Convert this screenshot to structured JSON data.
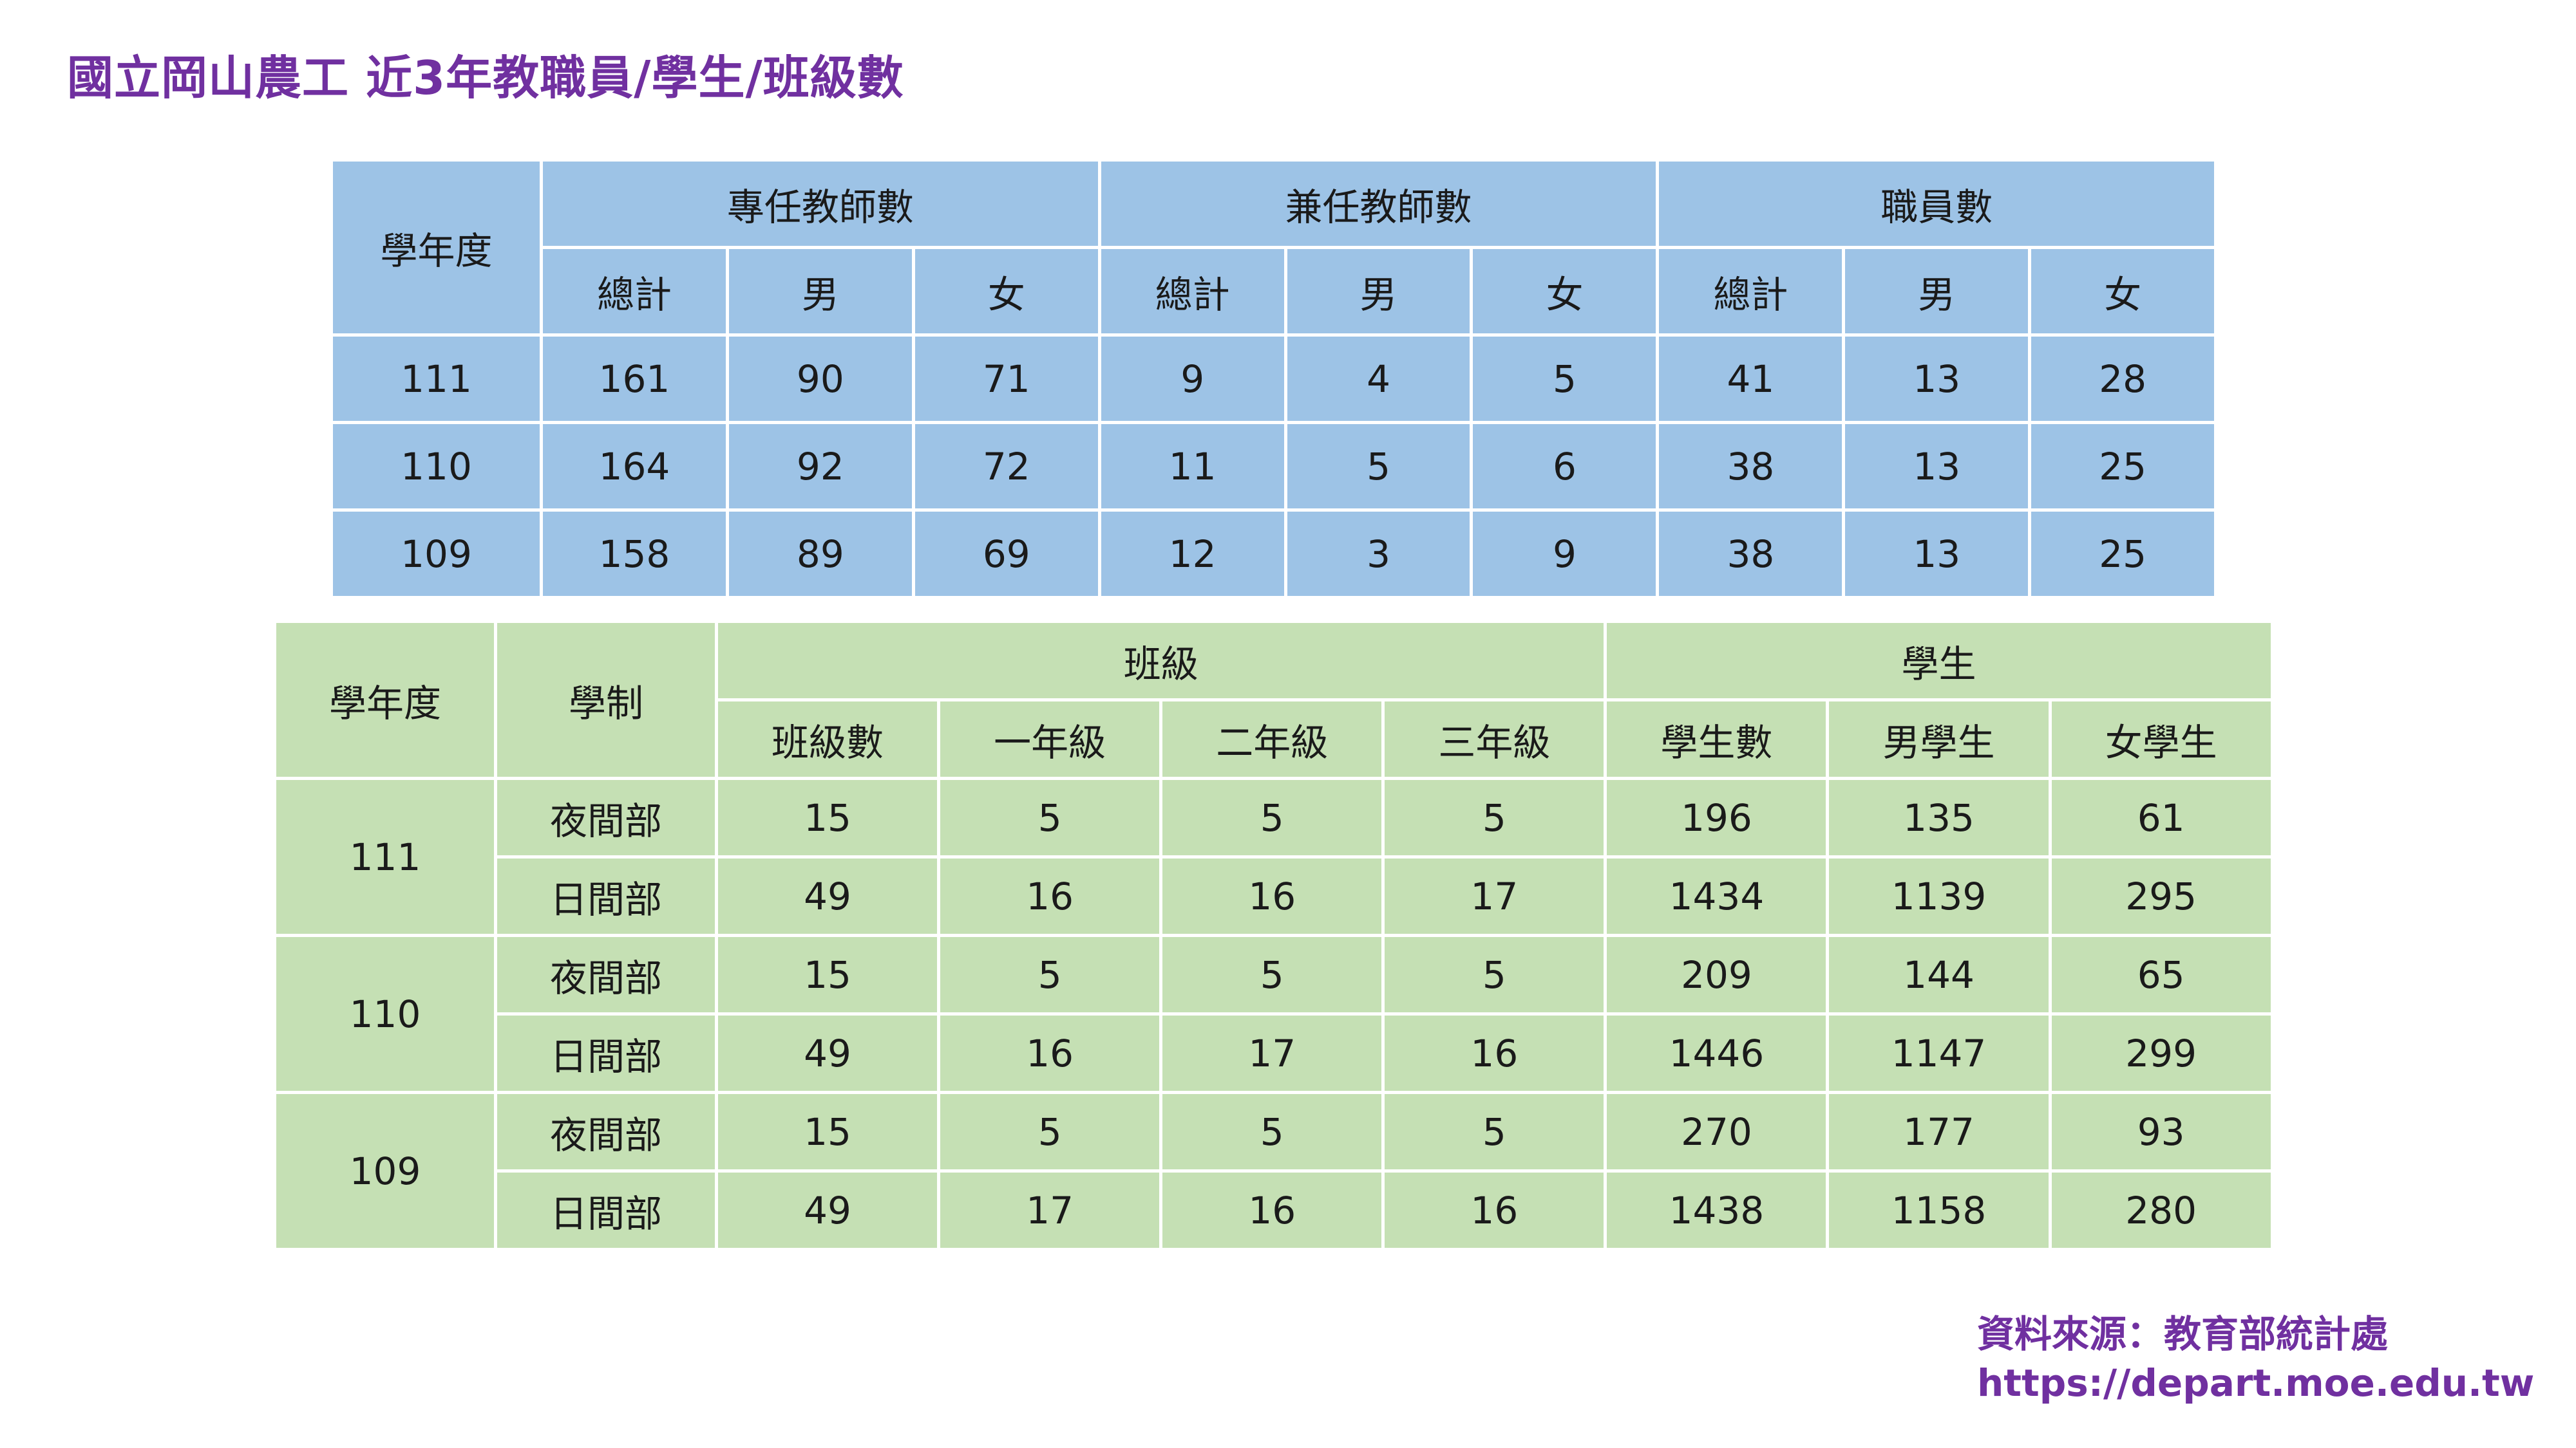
{
  "title": "國立岡山農工 近3年教職員/學生/班級數",
  "staff_table": {
    "year_header": "學年度",
    "groups": [
      "專任教師數",
      "兼任教師數",
      "職員數"
    ],
    "subheaders": [
      "總計",
      "男",
      "女"
    ],
    "rows": [
      {
        "year": "111",
        "values": [
          "161",
          "90",
          "71",
          "9",
          "4",
          "5",
          "41",
          "13",
          "28"
        ]
      },
      {
        "year": "110",
        "values": [
          "164",
          "92",
          "72",
          "11",
          "5",
          "6",
          "38",
          "13",
          "25"
        ]
      },
      {
        "year": "109",
        "values": [
          "158",
          "89",
          "69",
          "12",
          "3",
          "9",
          "38",
          "13",
          "25"
        ]
      }
    ]
  },
  "class_table": {
    "year_header": "學年度",
    "system_header": "學制",
    "class_group": "班級",
    "student_group": "學生",
    "class_subheaders": [
      "班級數",
      "一年級",
      "二年級",
      "三年級"
    ],
    "student_subheaders": [
      "學生數",
      "男學生",
      "女學生"
    ],
    "years": [
      {
        "year": "111",
        "rows": [
          {
            "system": "夜間部",
            "values": [
              "15",
              "5",
              "5",
              "5",
              "196",
              "135",
              "61"
            ]
          },
          {
            "system": "日間部",
            "values": [
              "49",
              "16",
              "16",
              "17",
              "1434",
              "1139",
              "295"
            ]
          }
        ]
      },
      {
        "year": "110",
        "rows": [
          {
            "system": "夜間部",
            "values": [
              "15",
              "5",
              "5",
              "5",
              "209",
              "144",
              "65"
            ]
          },
          {
            "system": "日間部",
            "values": [
              "49",
              "16",
              "17",
              "16",
              "1446",
              "1147",
              "299"
            ]
          }
        ]
      },
      {
        "year": "109",
        "rows": [
          {
            "system": "夜間部",
            "values": [
              "15",
              "5",
              "5",
              "5",
              "270",
              "177",
              "93"
            ]
          },
          {
            "system": "日間部",
            "values": [
              "49",
              "17",
              "16",
              "16",
              "1438",
              "1158",
              "280"
            ]
          }
        ]
      }
    ]
  },
  "source": {
    "label": "資料來源：教育部統計處",
    "url": "https://depart.moe.edu.tw"
  },
  "colors": {
    "title": "#7030a0",
    "staff_table_fill": "#9dc3e6",
    "class_table_fill": "#c5e0b4"
  }
}
